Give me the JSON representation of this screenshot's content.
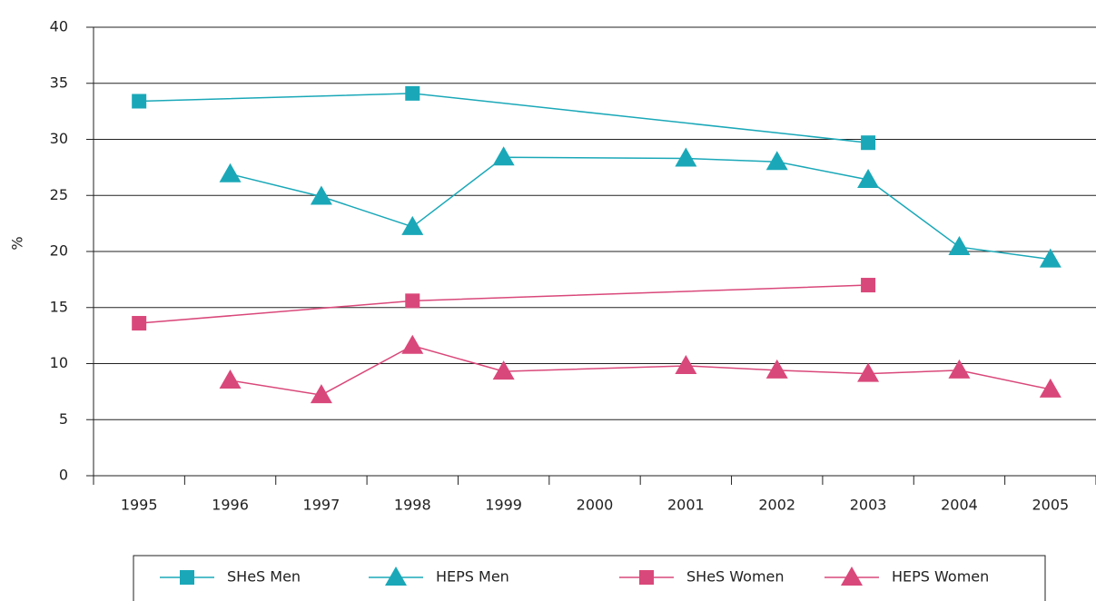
{
  "chart_data": {
    "type": "line",
    "y_label": "%",
    "xlim": [
      1994.5,
      2005.5
    ],
    "xticks": [
      1995,
      1996,
      1997,
      1998,
      1999,
      2000,
      2001,
      2002,
      2003,
      2004,
      2005
    ],
    "ylim": [
      0,
      40
    ],
    "yticks": [
      0,
      5,
      10,
      15,
      20,
      25,
      30,
      35,
      40
    ],
    "grid": true,
    "legend": "bottom",
    "series": [
      {
        "name": "SHeS Men",
        "color": "#1aa8b8",
        "marker": "square",
        "x": [
          1995,
          1998,
          2003
        ],
        "values": [
          33.4,
          34.1,
          29.7
        ]
      },
      {
        "name": "HEPS Men",
        "color": "#1aa8b8",
        "marker": "triangle",
        "x": [
          1996,
          1997,
          1998,
          1999,
          2001,
          2002,
          2003,
          2004,
          2005
        ],
        "values": [
          26.9,
          24.9,
          22.2,
          28.4,
          28.3,
          28.0,
          26.4,
          20.4,
          19.3
        ]
      },
      {
        "name": "SHeS Women",
        "color": "#d9487a",
        "marker": "square",
        "x": [
          1995,
          1998,
          2003
        ],
        "values": [
          13.6,
          15.6,
          17.0
        ]
      },
      {
        "name": "HEPS Women",
        "color": "#d9487a",
        "marker": "triangle",
        "x": [
          1996,
          1997,
          1998,
          1999,
          2001,
          2002,
          2003,
          2004,
          2005
        ],
        "values": [
          8.5,
          7.2,
          11.6,
          9.3,
          9.8,
          9.4,
          9.1,
          9.4,
          7.7
        ]
      }
    ]
  }
}
